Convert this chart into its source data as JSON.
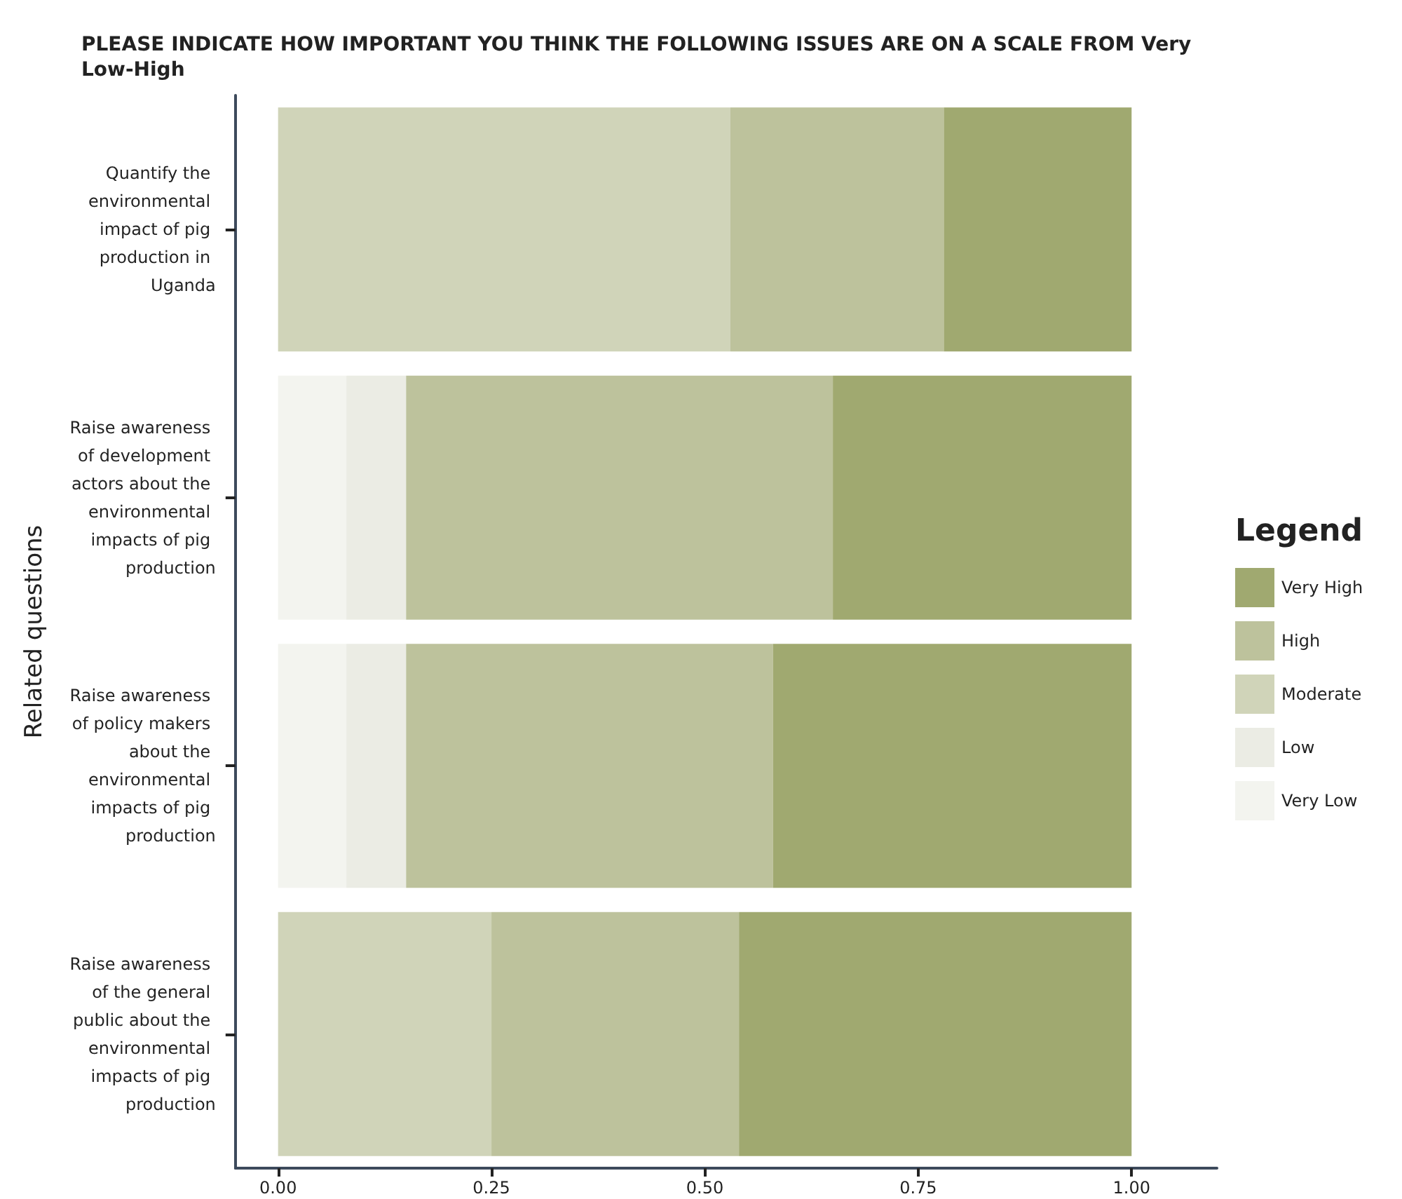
{
  "chart_data": {
    "type": "bar",
    "orientation": "horizontal",
    "stacked": true,
    "title": "PLEASE INDICATE HOW IMPORTANT YOU THINK THE FOLLOWING ISSUES ARE ON A SCALE FROM Very Low-High",
    "ylabel": "Related questions",
    "legend_title": "Legend",
    "legend": "right",
    "grid": false,
    "categories": [
      "Quantify the environmental impact of pig production in Uganda",
      "Raise awareness of development actors about the environmental impacts of pig production",
      "Raise awareness of policy makers about the environmental impacts of pig production",
      "Raise awareness of the general public about the environmental impacts of pig production"
    ],
    "xlim": [
      -0.05,
      1.1
    ],
    "xticks": [
      {
        "value": 0,
        "label": "0.00"
      },
      {
        "value": 0.25,
        "label": "0.25"
      },
      {
        "value": 0.5,
        "label": "0.50"
      },
      {
        "value": 0.75,
        "label": "0.75"
      },
      {
        "value": 1,
        "label": "1.00"
      }
    ],
    "series": [
      {
        "name": "Very Low",
        "color": "#f3f4ef",
        "values": [
          null,
          0.08,
          0.08,
          null
        ]
      },
      {
        "name": "Low",
        "color": "#ebece4",
        "values": [
          null,
          0.07,
          0.07,
          null
        ]
      },
      {
        "name": "Moderate",
        "color": "#d0d4b9",
        "values": [
          0.53,
          null,
          null,
          0.25
        ]
      },
      {
        "name": "High",
        "color": "#bdc29c",
        "values": [
          0.25,
          0.5,
          0.43,
          0.29
        ]
      },
      {
        "name": "Very High",
        "color": "#a0a970",
        "values": [
          0.22,
          0.35,
          0.42,
          0.46
        ]
      }
    ]
  }
}
